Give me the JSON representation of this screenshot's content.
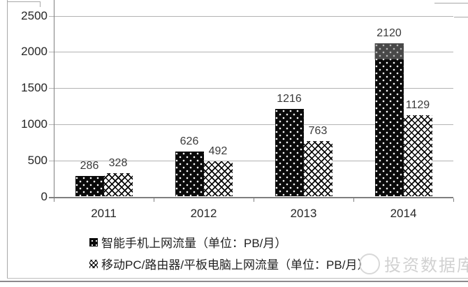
{
  "watermark": {
    "text": "投资数据库"
  },
  "chart_data": {
    "type": "bar",
    "title": "",
    "xlabel": "",
    "ylabel": "",
    "categories": [
      "2011",
      "2012",
      "2013",
      "2014"
    ],
    "series": [
      {
        "name": "智能手机上网流量（单位：PB/月）",
        "pattern": "white-dots-on-black",
        "color": "#0a0a0a",
        "values": [
          286,
          626,
          1216,
          2120
        ]
      },
      {
        "name": "移动PC/路由器/平板电脑上网流量（单位：PB/月）",
        "pattern": "black-crosshatch-on-white",
        "color": "#ffffff",
        "values": [
          328,
          492,
          763,
          1129
        ]
      }
    ],
    "ylim": [
      0,
      2500
    ],
    "yticks": [
      0,
      500,
      1000,
      1500,
      2000,
      2500
    ],
    "grid": true,
    "data_labels": true,
    "legend_position": "bottom-left"
  }
}
